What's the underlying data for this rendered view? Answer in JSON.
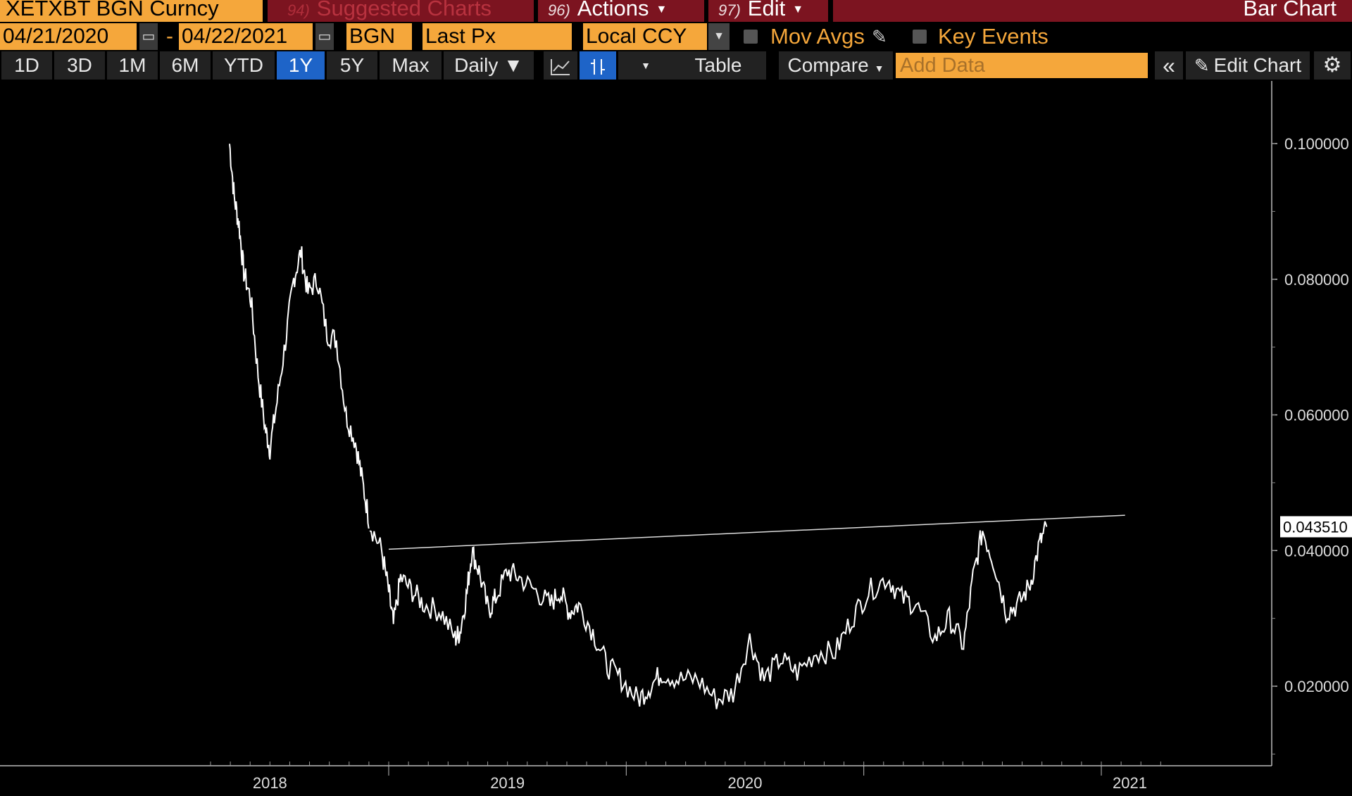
{
  "topbar": {
    "security": "XETXBT BGN Curncy",
    "suggested_num": "94)",
    "suggested_label": "Suggested Charts",
    "actions_num": "96)",
    "actions_label": "Actions",
    "edit_num": "97)",
    "edit_label": "Edit",
    "chart_title": "Bar Chart"
  },
  "controls": {
    "start_date": "04/21/2020",
    "date_separator": "-",
    "end_date": "04/22/2021",
    "source": "BGN",
    "field": "Last Px",
    "currency": "Local CCY",
    "mov_avgs": "Mov Avgs",
    "key_events": "Key Events"
  },
  "toolbar": {
    "ranges": [
      "1D",
      "3D",
      "1M",
      "6M",
      "YTD",
      "1Y",
      "5Y",
      "Max"
    ],
    "active_range": "1Y",
    "frequency": "Daily ▼",
    "table_label": "Table",
    "compare_label": "Compare",
    "add_data_placeholder": "Add Data",
    "edit_chart_label": "Edit Chart"
  },
  "colors": {
    "accent": "#f5a73b",
    "header_red": "#7c1420",
    "active_blue": "#1e64c8",
    "line": "#ffffff"
  },
  "chart_data": {
    "type": "line",
    "y_ticks": [
      "0.100000",
      "0.080000",
      "0.060000",
      "0.040000",
      "0.020000"
    ],
    "x_labels": [
      "2018",
      "2019",
      "2020",
      "2021"
    ],
    "last_value": "0.043510",
    "ylim": [
      0.01,
      0.105
    ],
    "series": [
      {
        "values": [
          [
            2017.33,
            0.1
          ],
          [
            2017.35,
            0.092
          ],
          [
            2017.37,
            0.088
          ],
          [
            2017.39,
            0.081
          ],
          [
            2017.42,
            0.077
          ],
          [
            2017.45,
            0.066
          ],
          [
            2017.48,
            0.058
          ],
          [
            2017.5,
            0.055
          ],
          [
            2017.53,
            0.062
          ],
          [
            2017.57,
            0.072
          ],
          [
            2017.6,
            0.08
          ],
          [
            2017.63,
            0.084
          ],
          [
            2017.66,
            0.078
          ],
          [
            2017.7,
            0.08
          ],
          [
            2017.74,
            0.072
          ],
          [
            2017.78,
            0.071
          ],
          [
            2017.82,
            0.06
          ],
          [
            2017.86,
            0.056
          ],
          [
            2017.89,
            0.05
          ],
          [
            2017.92,
            0.044
          ],
          [
            2017.97,
            0.04
          ],
          [
            2018.0,
            0.034
          ],
          [
            2018.02,
            0.029
          ],
          [
            2018.05,
            0.036
          ],
          [
            2018.1,
            0.034
          ],
          [
            2018.15,
            0.032
          ],
          [
            2018.22,
            0.031
          ],
          [
            2018.28,
            0.027
          ],
          [
            2018.3,
            0.028
          ],
          [
            2018.33,
            0.034
          ],
          [
            2018.35,
            0.04
          ],
          [
            2018.38,
            0.037
          ],
          [
            2018.42,
            0.031
          ],
          [
            2018.45,
            0.033
          ],
          [
            2018.5,
            0.037
          ],
          [
            2018.55,
            0.036
          ],
          [
            2018.62,
            0.034
          ],
          [
            2018.68,
            0.032
          ],
          [
            2018.72,
            0.034
          ],
          [
            2018.76,
            0.031
          ],
          [
            2018.8,
            0.032
          ],
          [
            2018.86,
            0.028
          ],
          [
            2018.92,
            0.023
          ],
          [
            2018.98,
            0.021
          ],
          [
            2019.05,
            0.018
          ],
          [
            2019.1,
            0.02
          ],
          [
            2019.15,
            0.022
          ],
          [
            2019.22,
            0.021
          ],
          [
            2019.3,
            0.021
          ],
          [
            2019.38,
            0.018
          ],
          [
            2019.45,
            0.019
          ],
          [
            2019.52,
            0.027
          ],
          [
            2019.58,
            0.021
          ],
          [
            2019.65,
            0.024
          ],
          [
            2019.72,
            0.022
          ],
          [
            2019.8,
            0.025
          ],
          [
            2019.88,
            0.025
          ],
          [
            2019.95,
            0.03
          ],
          [
            2020.02,
            0.034
          ],
          [
            2020.1,
            0.036
          ],
          [
            2020.16,
            0.033
          ],
          [
            2020.22,
            0.032
          ],
          [
            2020.3,
            0.027
          ],
          [
            2020.36,
            0.03
          ],
          [
            2020.42,
            0.026
          ],
          [
            2020.46,
            0.036
          ],
          [
            2020.5,
            0.043
          ],
          [
            2020.55,
            0.038
          ],
          [
            2020.6,
            0.031
          ],
          [
            2020.65,
            0.032
          ],
          [
            2020.7,
            0.035
          ],
          [
            2020.74,
            0.041
          ],
          [
            2020.77,
            0.0435
          ]
        ]
      }
    ],
    "trendline": [
      [
        2018.0,
        0.0402
      ],
      [
        2021.1,
        0.0452
      ]
    ]
  }
}
